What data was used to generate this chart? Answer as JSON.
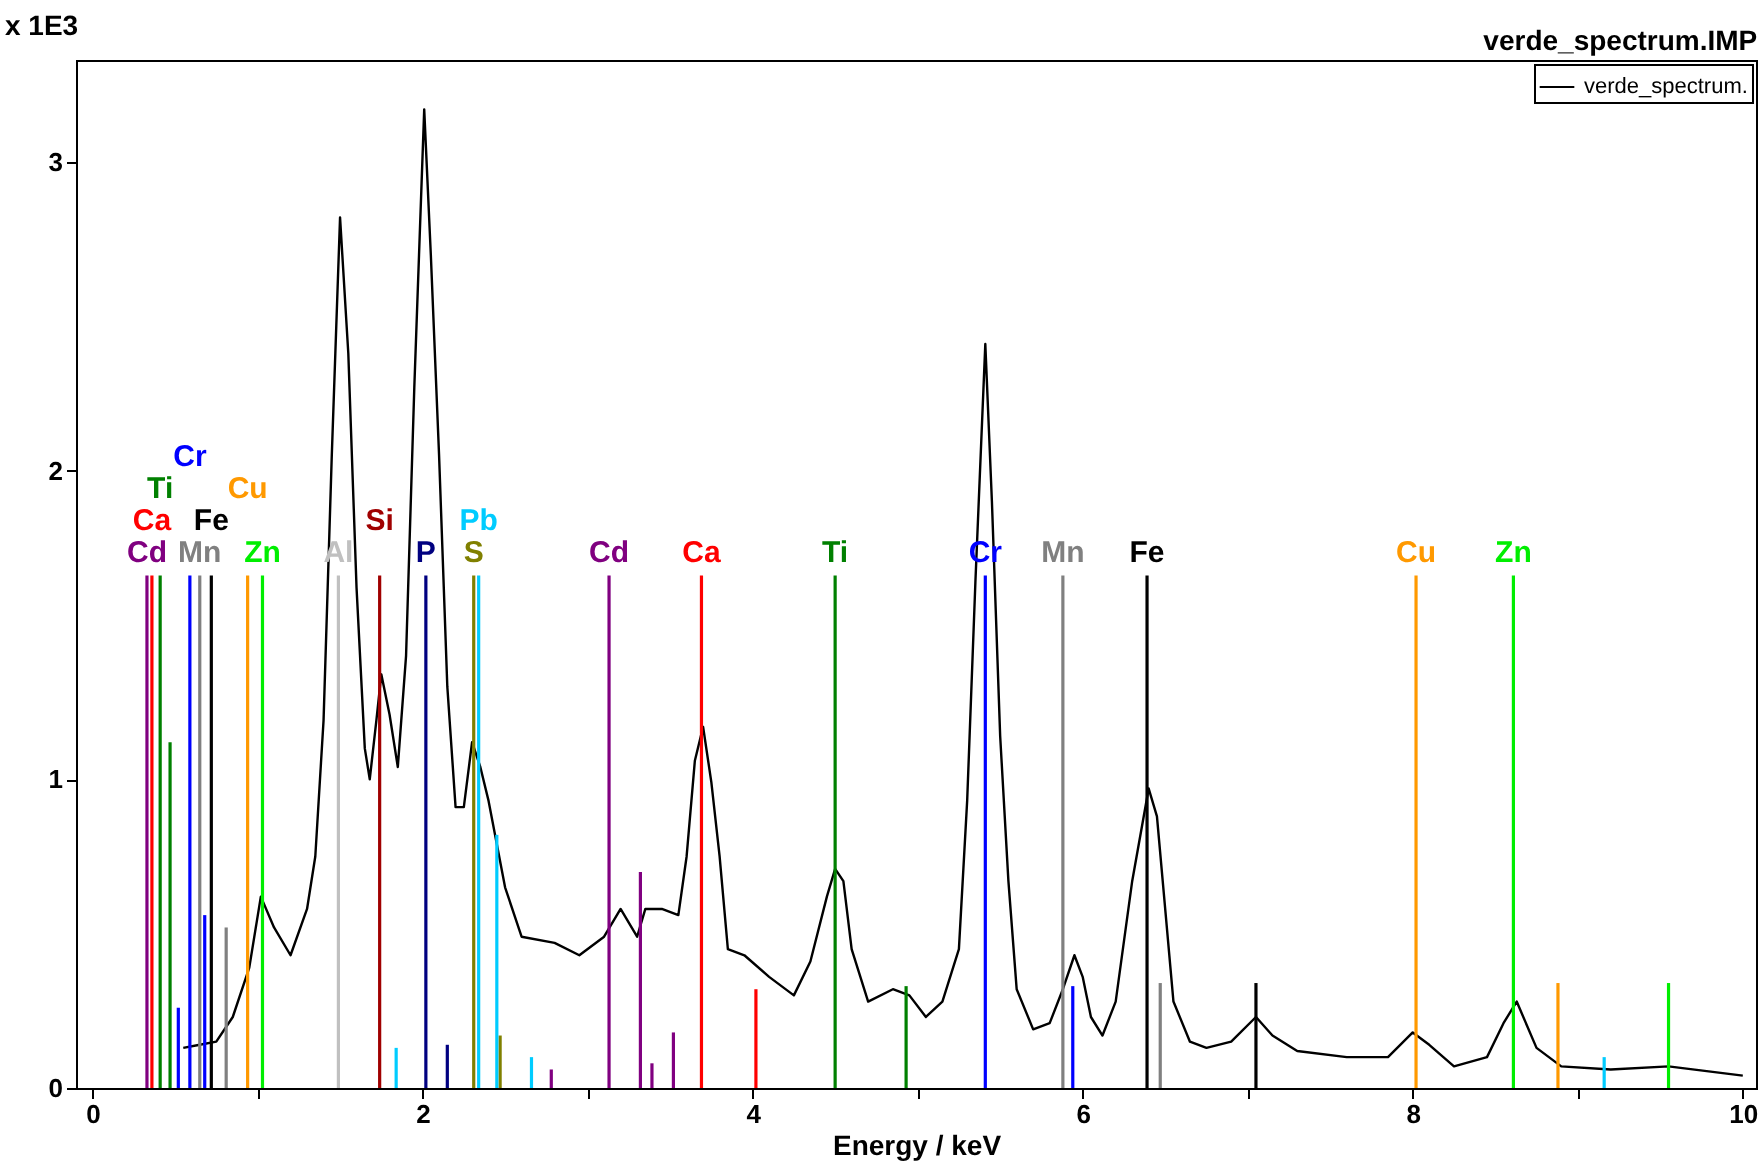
{
  "chart_data": {
    "type": "line",
    "title": "verde_spectrum.IMP",
    "xlabel": "Energy / keV",
    "ylabel": "x 1E3",
    "xlim": [
      -0.1,
      10.08
    ],
    "ylim": [
      0,
      3.33
    ],
    "xticks": [
      0,
      {
        "value": 1,
        "label": null
      },
      2,
      {
        "value": 3,
        "label": null
      },
      4,
      {
        "value": 5,
        "label": null
      },
      6,
      {
        "value": 7,
        "label": null
      },
      8,
      {
        "value": 9,
        "label": null
      },
      10
    ],
    "yticks": [
      0,
      1,
      2,
      3
    ],
    "grid": false,
    "legend": "top right",
    "marker": "none",
    "line_style": "solid",
    "series": [
      {
        "name": "verde_spectrum.",
        "color": "#000000",
        "x": [
          0.55,
          0.65,
          0.75,
          0.85,
          0.95,
          1.02,
          1.1,
          1.2,
          1.3,
          1.35,
          1.4,
          1.45,
          1.5,
          1.55,
          1.6,
          1.65,
          1.68,
          1.72,
          1.75,
          1.8,
          1.85,
          1.9,
          1.95,
          2.01,
          2.05,
          2.1,
          2.15,
          2.2,
          2.25,
          2.3,
          2.35,
          2.4,
          2.5,
          2.6,
          2.8,
          2.95,
          3.1,
          3.2,
          3.3,
          3.35,
          3.45,
          3.55,
          3.6,
          3.65,
          3.7,
          3.75,
          3.8,
          3.85,
          3.95,
          4.1,
          4.25,
          4.35,
          4.45,
          4.5,
          4.55,
          4.6,
          4.7,
          4.85,
          4.95,
          5.05,
          5.15,
          5.25,
          5.3,
          5.35,
          5.41,
          5.45,
          5.5,
          5.55,
          5.6,
          5.7,
          5.8,
          5.88,
          5.95,
          6.0,
          6.05,
          6.12,
          6.2,
          6.3,
          6.4,
          6.45,
          6.5,
          6.55,
          6.65,
          6.75,
          6.9,
          7.05,
          7.15,
          7.3,
          7.6,
          7.85,
          8.0,
          8.1,
          8.25,
          8.45,
          8.55,
          8.63,
          8.75,
          8.9,
          9.2,
          9.55,
          10.0
        ],
        "values": [
          0.13,
          0.14,
          0.15,
          0.23,
          0.39,
          0.62,
          0.52,
          0.43,
          0.58,
          0.75,
          1.19,
          2.05,
          2.82,
          2.38,
          1.62,
          1.1,
          1.0,
          1.19,
          1.34,
          1.21,
          1.04,
          1.4,
          2.27,
          3.17,
          2.7,
          2.05,
          1.3,
          0.91,
          0.91,
          1.12,
          1.04,
          0.93,
          0.65,
          0.49,
          0.47,
          0.43,
          0.49,
          0.58,
          0.49,
          0.58,
          0.58,
          0.56,
          0.75,
          1.06,
          1.17,
          0.99,
          0.75,
          0.45,
          0.43,
          0.36,
          0.3,
          0.41,
          0.62,
          0.71,
          0.67,
          0.45,
          0.28,
          0.32,
          0.3,
          0.23,
          0.28,
          0.45,
          0.93,
          1.64,
          2.41,
          1.9,
          1.14,
          0.67,
          0.32,
          0.19,
          0.21,
          0.32,
          0.43,
          0.36,
          0.23,
          0.17,
          0.28,
          0.67,
          0.97,
          0.88,
          0.58,
          0.28,
          0.15,
          0.13,
          0.15,
          0.23,
          0.17,
          0.12,
          0.1,
          0.1,
          0.18,
          0.14,
          0.07,
          0.1,
          0.21,
          0.28,
          0.13,
          0.07,
          0.06,
          0.07,
          0.04
        ]
      },
      {
        "name": "Cd",
        "color": "#800080",
        "type": "bar",
        "x": [
          0.33,
          2.78,
          3.13,
          3.32,
          3.39,
          3.52
        ],
        "values": [
          1.66,
          0.06,
          1.66,
          0.7,
          0.08,
          0.18
        ]
      },
      {
        "name": "Ca",
        "color": "#ff0000",
        "type": "bar",
        "x": [
          0.36,
          3.69,
          4.02
        ],
        "values": [
          1.66,
          1.66,
          0.32
        ]
      },
      {
        "name": "Ti",
        "color": "#008000",
        "type": "bar",
        "x": [
          0.41,
          0.47,
          4.5,
          4.93
        ],
        "values": [
          1.66,
          1.12,
          1.66,
          0.33
        ]
      },
      {
        "name": "Cr",
        "color": "#0000ff",
        "type": "bar",
        "x": [
          0.52,
          0.59,
          0.68,
          5.41,
          5.94
        ],
        "values": [
          0.26,
          1.66,
          0.56,
          1.66,
          0.33
        ]
      },
      {
        "name": "Mn",
        "color": "#808080",
        "type": "bar",
        "x": [
          0.65,
          0.81,
          5.88,
          6.47
        ],
        "values": [
          1.66,
          0.52,
          1.66,
          0.34
        ]
      },
      {
        "name": "Fe",
        "color": "#000000",
        "type": "bar",
        "x": [
          0.72,
          6.39,
          7.05
        ],
        "values": [
          1.66,
          1.66,
          0.34
        ]
      },
      {
        "name": "Cu",
        "color": "#ff9900",
        "type": "bar",
        "x": [
          0.94,
          8.02,
          8.88
        ],
        "values": [
          1.66,
          1.66,
          0.34
        ]
      },
      {
        "name": "Zn",
        "color": "#00ee00",
        "type": "bar",
        "x": [
          1.03,
          8.61,
          9.55
        ],
        "values": [
          1.66,
          1.66,
          0.34
        ]
      },
      {
        "name": "Al",
        "color": "#c0c0c0",
        "type": "bar",
        "x": [
          1.49
        ],
        "values": [
          1.66
        ]
      },
      {
        "name": "Si",
        "color": "#a00000",
        "type": "bar",
        "x": [
          1.74
        ],
        "values": [
          1.66
        ]
      },
      {
        "name": "P",
        "color": "#000080",
        "type": "bar",
        "x": [
          2.02,
          2.15
        ],
        "values": [
          1.66,
          0.14
        ]
      },
      {
        "name": "S",
        "color": "#808000",
        "type": "bar",
        "x": [
          2.31,
          2.47
        ],
        "values": [
          1.66,
          0.17
        ]
      },
      {
        "name": "Pb",
        "color": "#00ccff",
        "type": "bar",
        "x": [
          1.84,
          2.34,
          2.45,
          2.66,
          9.16
        ],
        "values": [
          0.13,
          1.66,
          0.82,
          0.1,
          0.1
        ]
      }
    ]
  }
}
